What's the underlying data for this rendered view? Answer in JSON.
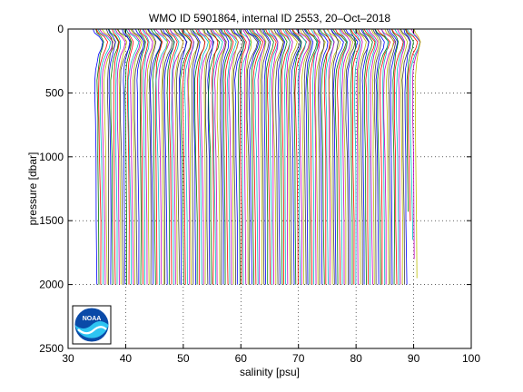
{
  "chart_data": {
    "type": "line",
    "title": "WMO ID 5901864, internal ID 2553, 20–Oct–2018",
    "xlabel": "salinity [psu]",
    "ylabel": "pressure [dbar]",
    "xlim": [
      30,
      100
    ],
    "ylim": [
      0,
      2500
    ],
    "y_reversed": true,
    "grid": true,
    "grid_style": "dotted",
    "xticks": [
      30,
      40,
      50,
      60,
      70,
      80,
      90,
      100
    ],
    "yticks": [
      0,
      500,
      1000,
      1500,
      2000,
      2500
    ],
    "series_colors": [
      "#0000ff",
      "#008000",
      "#ff0000",
      "#00bfbf",
      "#bf00bf",
      "#bfbf00",
      "#404040"
    ],
    "profile_count": 160,
    "profile_salinity_offset_start": 35,
    "profile_salinity_offset_end": 90.5,
    "profile_shape": {
      "pressure": [
        0,
        30,
        60,
        100,
        150,
        200,
        260,
        320,
        400,
        500,
        700,
        1000,
        1500,
        2000
      ],
      "salinity_anomaly": [
        -0.6,
        -0.3,
        0.4,
        0.9,
        0.7,
        0.3,
        0.0,
        -0.2,
        -0.3,
        -0.3,
        -0.25,
        -0.15,
        -0.05,
        0.0
      ]
    },
    "note_last_profiles_max_pressure": [
      1430,
      1500,
      1650,
      1800,
      1950
    ]
  },
  "logo": {
    "text": "NOAA"
  }
}
